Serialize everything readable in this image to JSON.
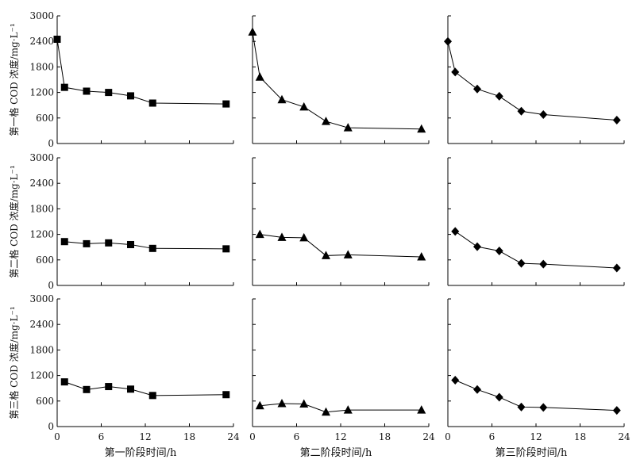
{
  "figure": {
    "row_ylabels": [
      "第一格 COD 浓度/mg·L⁻¹",
      "第二格 COD 浓度/mg·L⁻¹",
      "第三格 COD 浓度/mg·L⁻¹"
    ],
    "col_xlabels": [
      "第一阶段时间/h",
      "第二阶段时间/h",
      "第三阶段时间/h"
    ]
  },
  "chart_data": [
    {
      "type": "line",
      "marker": "square",
      "x": [
        0,
        1,
        4,
        7,
        10,
        13,
        23
      ],
      "values": [
        2450,
        1320,
        1230,
        1200,
        1120,
        950,
        930
      ],
      "xlim": [
        0,
        24
      ],
      "ylim": [
        0,
        3000
      ],
      "xticks": [
        0,
        6,
        12,
        18,
        24
      ],
      "yticks": [
        0,
        600,
        1200,
        1800,
        2400,
        3000
      ]
    },
    {
      "type": "line",
      "marker": "triangle",
      "x": [
        0,
        1,
        4,
        7,
        10,
        13,
        23
      ],
      "values": [
        2620,
        1560,
        1030,
        860,
        520,
        370,
        340
      ],
      "xlim": [
        0,
        24
      ],
      "ylim": [
        0,
        3000
      ],
      "xticks": [
        0,
        6,
        12,
        18,
        24
      ],
      "yticks": [
        0,
        600,
        1200,
        1800,
        2400,
        3000
      ]
    },
    {
      "type": "line",
      "marker": "diamond",
      "x": [
        0,
        1,
        4,
        7,
        10,
        13,
        23
      ],
      "values": [
        2400,
        1680,
        1280,
        1110,
        760,
        680,
        550
      ],
      "xlim": [
        0,
        24
      ],
      "ylim": [
        0,
        3000
      ],
      "xticks": [
        0,
        6,
        12,
        18,
        24
      ],
      "yticks": [
        0,
        600,
        1200,
        1800,
        2400,
        3000
      ]
    },
    {
      "type": "line",
      "marker": "square",
      "x": [
        1,
        4,
        7,
        10,
        13,
        23
      ],
      "values": [
        1030,
        980,
        1000,
        960,
        870,
        860
      ],
      "xlim": [
        0,
        24
      ],
      "ylim": [
        0,
        3000
      ],
      "xticks": [
        0,
        6,
        12,
        18,
        24
      ],
      "yticks": [
        0,
        600,
        1200,
        1800,
        2400,
        3000
      ]
    },
    {
      "type": "line",
      "marker": "triangle",
      "x": [
        1,
        4,
        7,
        10,
        13,
        23
      ],
      "values": [
        1200,
        1130,
        1120,
        700,
        720,
        670
      ],
      "xlim": [
        0,
        24
      ],
      "ylim": [
        0,
        3000
      ],
      "xticks": [
        0,
        6,
        12,
        18,
        24
      ],
      "yticks": [
        0,
        600,
        1200,
        1800,
        2400,
        3000
      ]
    },
    {
      "type": "line",
      "marker": "diamond",
      "x": [
        1,
        4,
        7,
        10,
        13,
        23
      ],
      "values": [
        1270,
        910,
        810,
        520,
        500,
        410
      ],
      "xlim": [
        0,
        24
      ],
      "ylim": [
        0,
        3000
      ],
      "xticks": [
        0,
        6,
        12,
        18,
        24
      ],
      "yticks": [
        0,
        600,
        1200,
        1800,
        2400,
        3000
      ]
    },
    {
      "type": "line",
      "marker": "square",
      "x": [
        1,
        4,
        7,
        10,
        13,
        23
      ],
      "values": [
        1050,
        870,
        940,
        880,
        730,
        750
      ],
      "xlim": [
        0,
        24
      ],
      "ylim": [
        0,
        3000
      ],
      "xticks": [
        0,
        6,
        12,
        18,
        24
      ],
      "yticks": [
        0,
        600,
        1200,
        1800,
        2400,
        3000
      ]
    },
    {
      "type": "line",
      "marker": "triangle",
      "x": [
        1,
        4,
        7,
        10,
        13,
        23
      ],
      "values": [
        490,
        540,
        530,
        340,
        390,
        390
      ],
      "xlim": [
        0,
        24
      ],
      "ylim": [
        0,
        3000
      ],
      "xticks": [
        0,
        6,
        12,
        18,
        24
      ],
      "yticks": [
        0,
        600,
        1200,
        1800,
        2400,
        3000
      ]
    },
    {
      "type": "line",
      "marker": "diamond",
      "x": [
        1,
        4,
        7,
        10,
        13,
        23
      ],
      "values": [
        1090,
        870,
        690,
        460,
        450,
        380
      ],
      "xlim": [
        0,
        24
      ],
      "ylim": [
        0,
        3000
      ],
      "xticks": [
        0,
        6,
        12,
        18,
        24
      ],
      "yticks": [
        0,
        600,
        1200,
        1800,
        2400,
        3000
      ]
    }
  ]
}
